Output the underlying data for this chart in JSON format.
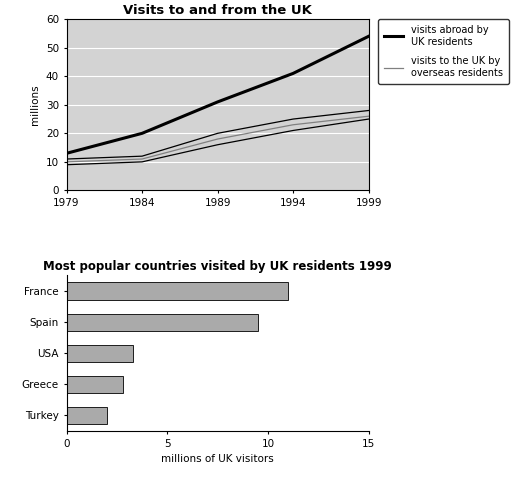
{
  "line_title": "Visits to and from the UK",
  "line_years": [
    1979,
    1984,
    1989,
    1994,
    1999
  ],
  "visits_abroad": [
    13,
    20,
    31,
    41,
    54
  ],
  "overseas_upper": [
    11,
    12,
    20,
    25,
    28
  ],
  "overseas_mid": [
    10,
    11,
    18,
    23,
    26
  ],
  "overseas_lower": [
    9,
    10,
    16,
    21,
    25
  ],
  "line_ylim": [
    0,
    60
  ],
  "line_ylabel": "millions",
  "line_xticks": [
    1979,
    1984,
    1989,
    1994,
    1999
  ],
  "legend_abroad": "visits abroad by\nUK residents",
  "legend_overseas": "visits to the UK by\noverseas residents",
  "bar_title": "Most popular countries visited by UK residents 1999",
  "bar_countries": [
    "France",
    "Spain",
    "USA",
    "Greece",
    "Turkey"
  ],
  "bar_values": [
    11.0,
    9.5,
    3.3,
    2.8,
    2.0
  ],
  "bar_color": "#aaaaaa",
  "bar_xlim": [
    0,
    15
  ],
  "bar_xlabel": "millions of UK visitors",
  "plot_bg_line": "#d3d3d3",
  "plot_bg_bar": "#ffffff",
  "grid_color": "#ffffff"
}
